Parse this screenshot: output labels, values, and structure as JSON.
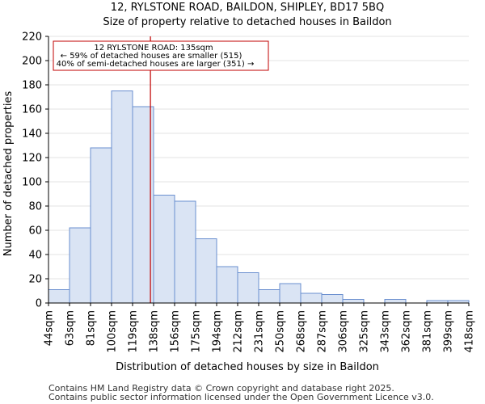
{
  "chart_data": {
    "type": "bar",
    "title": "12, RYLSTONE ROAD, BAILDON, SHIPLEY, BD17 5BQ",
    "subtitle": "Size of property relative to detached houses in Baildon",
    "xlabel": "Distribution of detached houses by size in Baildon",
    "ylabel": "Number of detached properties",
    "x_tick_labels": [
      "44sqm",
      "63sqm",
      "81sqm",
      "100sqm",
      "119sqm",
      "138sqm",
      "156sqm",
      "175sqm",
      "194sqm",
      "212sqm",
      "231sqm",
      "250sqm",
      "268sqm",
      "287sqm",
      "306sqm",
      "325sqm",
      "343sqm",
      "362sqm",
      "381sqm",
      "399sqm",
      "418sqm"
    ],
    "values": [
      11,
      62,
      128,
      175,
      162,
      89,
      84,
      53,
      30,
      25,
      11,
      16,
      8,
      7,
      3,
      0,
      3,
      0,
      2,
      2
    ],
    "ylim": [
      0,
      220
    ],
    "y_ticks": [
      0,
      20,
      40,
      60,
      80,
      100,
      120,
      140,
      160,
      180,
      200,
      220
    ],
    "bar_fill": "#dae4f4",
    "bar_stroke": "#6a8fcf",
    "marker": {
      "value_bin_position": 4.85,
      "color": "#c00000",
      "label_line1": "12 RYLSTONE ROAD: 135sqm",
      "label_line2": "← 59% of detached houses are smaller (515)",
      "label_line3": "40% of semi-detached houses are larger (351) →"
    }
  },
  "footer": {
    "line1": "Contains HM Land Registry data © Crown copyright and database right 2025.",
    "line2": "Contains public sector information licensed under the Open Government Licence v3.0."
  }
}
